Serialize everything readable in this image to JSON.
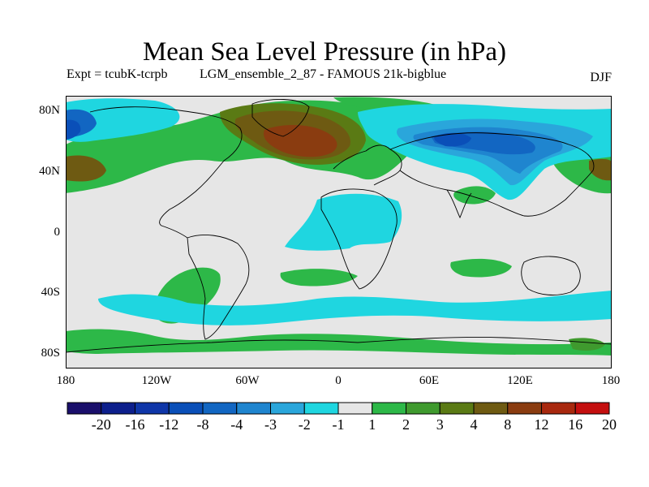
{
  "title": "Mean Sea Level Pressure (in hPa)",
  "subtitle_left": "Expt = tcubK-tcrpb",
  "subtitle_right": "LGM_ensemble_2_87 - FAMOUS 21k-bigblue",
  "season": "DJF",
  "axes": {
    "lat_labels": [
      "80N",
      "40N",
      "0",
      "40S",
      "80S"
    ],
    "lon_labels": [
      "180",
      "120W",
      "60W",
      "0",
      "60E",
      "120E",
      "180"
    ]
  },
  "colorbar": {
    "labels": [
      "-20",
      "-16",
      "-12",
      "-8",
      "-4",
      "-3",
      "-2",
      "-1",
      "1",
      "2",
      "3",
      "4",
      "8",
      "12",
      "16",
      "20"
    ],
    "colors": [
      "#1a0f6b",
      "#0d1f8c",
      "#0f36a8",
      "#0a4fb8",
      "#1266c2",
      "#1f85cf",
      "#2aa6db",
      "#1fd6e0",
      "#e6e6e6",
      "#2db848",
      "#3f9a2e",
      "#5a7a14",
      "#6e5a12",
      "#8a3c10",
      "#a8280e",
      "#c40f0f"
    ]
  },
  "map_style": {
    "background": "#e6e6e6",
    "coast_color": "#000000"
  }
}
